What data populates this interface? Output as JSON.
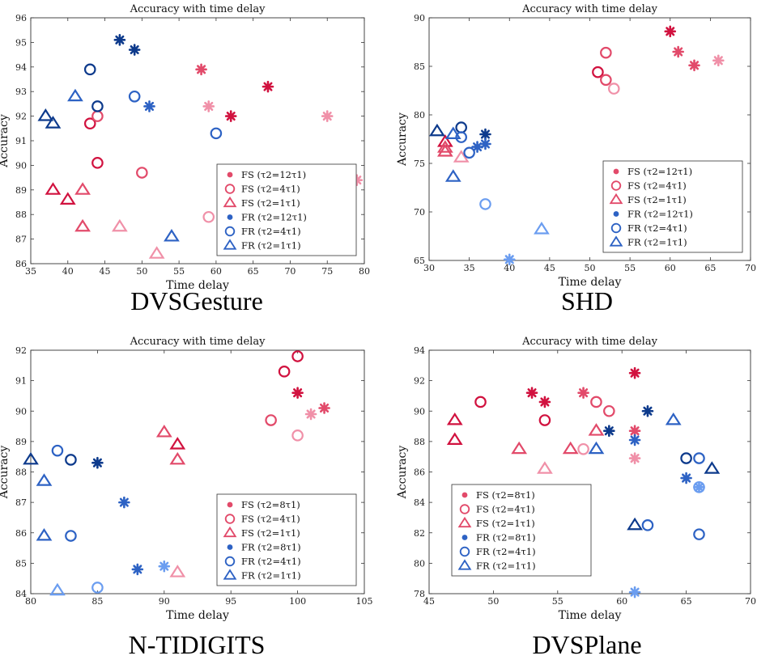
{
  "colors": {
    "fs_dark": "#d1123f",
    "fs_mid": "#e24a6a",
    "fs_light": "#f090a8",
    "fr_dark": "#0d3a8c",
    "fr_mid": "#2d62c4",
    "fr_light": "#6b9df0"
  },
  "chart_data": [
    {
      "type": "scatter",
      "caption": "DVSGesture",
      "title": "Accuracy with time delay",
      "xlabel": "Time delay",
      "ylabel": "Accuracy",
      "xlim": [
        35,
        80
      ],
      "ylim": [
        86,
        96
      ],
      "xticks": [
        "35",
        "40",
        "45",
        "50",
        "55",
        "60",
        "65",
        "70",
        "75",
        "80"
      ],
      "yticks": [
        "86",
        "87",
        "88",
        "89",
        "90",
        "91",
        "92",
        "93",
        "94",
        "95",
        "96"
      ],
      "legend_position": "bottom-right",
      "legend": [
        {
          "label": "FS (τ2=12τ1)",
          "marker": "dot",
          "group": "fs"
        },
        {
          "label": "FS (τ2=4τ1)",
          "marker": "circle",
          "group": "fs"
        },
        {
          "label": "FS (τ2=1τ1)",
          "marker": "triangle",
          "group": "fs"
        },
        {
          "label": "FR (τ2=12τ1)",
          "marker": "dot",
          "group": "fr"
        },
        {
          "label": "FR (τ2=4τ1)",
          "marker": "circle",
          "group": "fr"
        },
        {
          "label": "FR (τ2=1τ1)",
          "marker": "triangle",
          "group": "fr"
        }
      ],
      "points": [
        {
          "x": 58,
          "y": 93.9,
          "marker": "star",
          "color": "fs_mid"
        },
        {
          "x": 59,
          "y": 92.4,
          "marker": "star",
          "color": "fs_light"
        },
        {
          "x": 62,
          "y": 92.0,
          "marker": "star",
          "color": "fs_dark"
        },
        {
          "x": 67,
          "y": 93.2,
          "marker": "star",
          "color": "fs_dark"
        },
        {
          "x": 75,
          "y": 92.0,
          "marker": "star",
          "color": "fs_light"
        },
        {
          "x": 79,
          "y": 89.4,
          "marker": "star",
          "color": "fs_light"
        },
        {
          "x": 43,
          "y": 91.7,
          "marker": "circle",
          "color": "fs_dark"
        },
        {
          "x": 44,
          "y": 92.0,
          "marker": "circle",
          "color": "fs_mid"
        },
        {
          "x": 44,
          "y": 90.1,
          "marker": "circle",
          "color": "fs_dark"
        },
        {
          "x": 50,
          "y": 89.7,
          "marker": "circle",
          "color": "fs_mid"
        },
        {
          "x": 59,
          "y": 87.9,
          "marker": "circle",
          "color": "fs_light"
        },
        {
          "x": 38,
          "y": 89.0,
          "marker": "triangle",
          "color": "fs_dark"
        },
        {
          "x": 40,
          "y": 88.6,
          "marker": "triangle",
          "color": "fs_dark"
        },
        {
          "x": 42,
          "y": 89.0,
          "marker": "triangle",
          "color": "fs_mid"
        },
        {
          "x": 42,
          "y": 87.5,
          "marker": "triangle",
          "color": "fs_mid"
        },
        {
          "x": 47,
          "y": 87.5,
          "marker": "triangle",
          "color": "fs_light"
        },
        {
          "x": 52,
          "y": 86.4,
          "marker": "triangle",
          "color": "fs_light"
        },
        {
          "x": 47,
          "y": 95.1,
          "marker": "star",
          "color": "fr_dark"
        },
        {
          "x": 49,
          "y": 94.7,
          "marker": "star",
          "color": "fr_dark"
        },
        {
          "x": 51,
          "y": 92.4,
          "marker": "star",
          "color": "fr_mid"
        },
        {
          "x": 43,
          "y": 93.9,
          "marker": "circle",
          "color": "fr_dark"
        },
        {
          "x": 44,
          "y": 92.4,
          "marker": "circle",
          "color": "fr_dark"
        },
        {
          "x": 49,
          "y": 92.8,
          "marker": "circle",
          "color": "fr_mid"
        },
        {
          "x": 60,
          "y": 91.3,
          "marker": "circle",
          "color": "fr_mid"
        },
        {
          "x": 37,
          "y": 92.0,
          "marker": "triangle",
          "color": "fr_dark"
        },
        {
          "x": 38,
          "y": 91.7,
          "marker": "triangle",
          "color": "fr_dark"
        },
        {
          "x": 41,
          "y": 92.8,
          "marker": "triangle",
          "color": "fr_mid"
        },
        {
          "x": 54,
          "y": 87.1,
          "marker": "triangle",
          "color": "fr_mid"
        }
      ]
    },
    {
      "type": "scatter",
      "caption": "SHD",
      "title": "Accuracy with time delay",
      "xlabel": "Time delay",
      "ylabel": "Accuracy",
      "xlim": [
        30,
        70
      ],
      "ylim": [
        65,
        90
      ],
      "xticks": [
        "30",
        "35",
        "40",
        "45",
        "50",
        "55",
        "60",
        "65",
        "70"
      ],
      "yticks": [
        "65",
        "70",
        "75",
        "80",
        "85",
        "90"
      ],
      "legend_position": "bottom-right",
      "legend": [
        {
          "label": "FS (τ2=12τ1)",
          "marker": "dot",
          "group": "fs"
        },
        {
          "label": "FS (τ2=4τ1)",
          "marker": "circle",
          "group": "fs"
        },
        {
          "label": "FS (τ2=1τ1)",
          "marker": "triangle",
          "group": "fs"
        },
        {
          "label": "FR (τ2=12τ1)",
          "marker": "dot",
          "group": "fr"
        },
        {
          "label": "FR (τ2=4τ1)",
          "marker": "circle",
          "group": "fr"
        },
        {
          "label": "FR (τ2=1τ1)",
          "marker": "triangle",
          "group": "fr"
        }
      ],
      "points": [
        {
          "x": 60,
          "y": 88.6,
          "marker": "star",
          "color": "fs_dark"
        },
        {
          "x": 61,
          "y": 86.5,
          "marker": "star",
          "color": "fs_mid"
        },
        {
          "x": 63,
          "y": 85.1,
          "marker": "star",
          "color": "fs_mid"
        },
        {
          "x": 66,
          "y": 85.6,
          "marker": "star",
          "color": "fs_light"
        },
        {
          "x": 52,
          "y": 86.4,
          "marker": "circle",
          "color": "fs_mid"
        },
        {
          "x": 51,
          "y": 84.4,
          "marker": "circle",
          "color": "fs_dark"
        },
        {
          "x": 52,
          "y": 83.6,
          "marker": "circle",
          "color": "fs_mid"
        },
        {
          "x": 53,
          "y": 82.7,
          "marker": "circle",
          "color": "fs_light"
        },
        {
          "x": 32,
          "y": 77.2,
          "marker": "triangle",
          "color": "fs_dark"
        },
        {
          "x": 32,
          "y": 76.6,
          "marker": "triangle",
          "color": "fs_mid"
        },
        {
          "x": 32,
          "y": 76.2,
          "marker": "triangle",
          "color": "fs_mid"
        },
        {
          "x": 34,
          "y": 75.6,
          "marker": "triangle",
          "color": "fs_light"
        },
        {
          "x": 37,
          "y": 78.0,
          "marker": "star",
          "color": "fr_dark"
        },
        {
          "x": 37,
          "y": 77.0,
          "marker": "star",
          "color": "fr_mid"
        },
        {
          "x": 36,
          "y": 76.7,
          "marker": "star",
          "color": "fr_mid"
        },
        {
          "x": 40,
          "y": 65.1,
          "marker": "star",
          "color": "fr_light"
        },
        {
          "x": 34,
          "y": 78.7,
          "marker": "circle",
          "color": "fr_dark"
        },
        {
          "x": 34,
          "y": 77.7,
          "marker": "circle",
          "color": "fr_mid"
        },
        {
          "x": 35,
          "y": 76.1,
          "marker": "circle",
          "color": "fr_mid"
        },
        {
          "x": 37,
          "y": 70.8,
          "marker": "circle",
          "color": "fr_light"
        },
        {
          "x": 31,
          "y": 78.3,
          "marker": "triangle",
          "color": "fr_dark"
        },
        {
          "x": 33,
          "y": 78.0,
          "marker": "triangle",
          "color": "fr_mid"
        },
        {
          "x": 33,
          "y": 73.6,
          "marker": "triangle",
          "color": "fr_mid"
        },
        {
          "x": 44,
          "y": 68.2,
          "marker": "triangle",
          "color": "fr_light"
        }
      ]
    },
    {
      "type": "scatter",
      "caption": "N-TIDIGITS",
      "title": "Accuracy with time delay",
      "xlabel": "Time delay",
      "ylabel": "Accuracy",
      "xlim": [
        80,
        105
      ],
      "ylim": [
        84,
        92
      ],
      "xticks": [
        "80",
        "85",
        "90",
        "95",
        "100",
        "105"
      ],
      "yticks": [
        "84",
        "85",
        "86",
        "87",
        "88",
        "89",
        "90",
        "91",
        "92"
      ],
      "legend_position": "bottom-right",
      "legend": [
        {
          "label": "FS (τ2=8τ1)",
          "marker": "dot",
          "group": "fs"
        },
        {
          "label": "FS (τ2=4τ1)",
          "marker": "circle",
          "group": "fs"
        },
        {
          "label": "FS (τ2=1τ1)",
          "marker": "triangle",
          "group": "fs"
        },
        {
          "label": "FR (τ2=8τ1)",
          "marker": "dot",
          "group": "fr"
        },
        {
          "label": "FR (τ2=4τ1)",
          "marker": "circle",
          "group": "fr"
        },
        {
          "label": "FR (τ2=1τ1)",
          "marker": "triangle",
          "group": "fr"
        }
      ],
      "points": [
        {
          "x": 100,
          "y": 90.6,
          "marker": "star",
          "color": "fs_dark"
        },
        {
          "x": 101,
          "y": 89.9,
          "marker": "star",
          "color": "fs_light"
        },
        {
          "x": 102,
          "y": 90.1,
          "marker": "star",
          "color": "fs_mid"
        },
        {
          "x": 90,
          "y": 84.9,
          "marker": "star",
          "color": "fr_light"
        },
        {
          "x": 100,
          "y": 91.8,
          "marker": "circle",
          "color": "fs_dark"
        },
        {
          "x": 99,
          "y": 91.3,
          "marker": "circle",
          "color": "fs_dark"
        },
        {
          "x": 98,
          "y": 89.7,
          "marker": "circle",
          "color": "fs_mid"
        },
        {
          "x": 100,
          "y": 89.2,
          "marker": "circle",
          "color": "fs_light"
        },
        {
          "x": 90,
          "y": 89.3,
          "marker": "triangle",
          "color": "fs_mid"
        },
        {
          "x": 91,
          "y": 88.9,
          "marker": "triangle",
          "color": "fs_dark"
        },
        {
          "x": 91,
          "y": 88.4,
          "marker": "triangle",
          "color": "fs_mid"
        },
        {
          "x": 91,
          "y": 84.7,
          "marker": "triangle",
          "color": "fs_light"
        },
        {
          "x": 85,
          "y": 88.3,
          "marker": "star",
          "color": "fr_dark"
        },
        {
          "x": 87,
          "y": 87.0,
          "marker": "star",
          "color": "fr_mid"
        },
        {
          "x": 88,
          "y": 84.8,
          "marker": "star",
          "color": "fr_mid"
        },
        {
          "x": 82,
          "y": 88.7,
          "marker": "circle",
          "color": "fr_mid"
        },
        {
          "x": 83,
          "y": 88.4,
          "marker": "circle",
          "color": "fr_dark"
        },
        {
          "x": 83,
          "y": 85.9,
          "marker": "circle",
          "color": "fr_mid"
        },
        {
          "x": 85,
          "y": 84.2,
          "marker": "circle",
          "color": "fr_light"
        },
        {
          "x": 80,
          "y": 88.4,
          "marker": "triangle",
          "color": "fr_dark"
        },
        {
          "x": 81,
          "y": 87.7,
          "marker": "triangle",
          "color": "fr_mid"
        },
        {
          "x": 81,
          "y": 85.9,
          "marker": "triangle",
          "color": "fr_mid"
        },
        {
          "x": 82,
          "y": 84.1,
          "marker": "triangle",
          "color": "fr_light"
        }
      ]
    },
    {
      "type": "scatter",
      "caption": "DVSPlane",
      "title": "Accuracy with time delay",
      "xlabel": "Time delay",
      "ylabel": "Accuracy",
      "xlim": [
        45,
        70
      ],
      "ylim": [
        78,
        94
      ],
      "xticks": [
        "45",
        "50",
        "55",
        "60",
        "65",
        "70"
      ],
      "yticks": [
        "78",
        "80",
        "82",
        "84",
        "86",
        "88",
        "90",
        "92",
        "94"
      ],
      "legend_position": "bottom-left",
      "legend": [
        {
          "label": "FS (τ2=8τ1)",
          "marker": "dot",
          "group": "fs"
        },
        {
          "label": "FS (τ2=4τ1)",
          "marker": "circle",
          "group": "fs"
        },
        {
          "label": "FS (τ2=1τ1)",
          "marker": "triangle",
          "group": "fs"
        },
        {
          "label": "FR (τ2=8τ1)",
          "marker": "dot",
          "group": "fr"
        },
        {
          "label": "FR (τ2=4τ1)",
          "marker": "circle",
          "group": "fr"
        },
        {
          "label": "FR (τ2=1τ1)",
          "marker": "triangle",
          "group": "fr"
        }
      ],
      "points": [
        {
          "x": 61,
          "y": 92.5,
          "marker": "star",
          "color": "fs_dark"
        },
        {
          "x": 53,
          "y": 91.2,
          "marker": "star",
          "color": "fs_dark"
        },
        {
          "x": 54,
          "y": 90.6,
          "marker": "star",
          "color": "fs_dark"
        },
        {
          "x": 57,
          "y": 91.2,
          "marker": "star",
          "color": "fs_mid"
        },
        {
          "x": 61,
          "y": 88.7,
          "marker": "star",
          "color": "fs_mid"
        },
        {
          "x": 61,
          "y": 86.9,
          "marker": "star",
          "color": "fs_light"
        },
        {
          "x": 49,
          "y": 90.6,
          "marker": "circle",
          "color": "fs_dark"
        },
        {
          "x": 54,
          "y": 89.4,
          "marker": "circle",
          "color": "fs_dark"
        },
        {
          "x": 58,
          "y": 90.6,
          "marker": "circle",
          "color": "fs_mid"
        },
        {
          "x": 59,
          "y": 90.0,
          "marker": "circle",
          "color": "fs_mid"
        },
        {
          "x": 57,
          "y": 87.5,
          "marker": "circle",
          "color": "fs_light"
        },
        {
          "x": 47,
          "y": 89.4,
          "marker": "triangle",
          "color": "fs_dark"
        },
        {
          "x": 47,
          "y": 88.1,
          "marker": "triangle",
          "color": "fs_dark"
        },
        {
          "x": 52,
          "y": 87.5,
          "marker": "triangle",
          "color": "fs_mid"
        },
        {
          "x": 54,
          "y": 86.2,
          "marker": "triangle",
          "color": "fs_light"
        },
        {
          "x": 56,
          "y": 87.5,
          "marker": "triangle",
          "color": "fs_mid"
        },
        {
          "x": 58,
          "y": 88.7,
          "marker": "triangle",
          "color": "fs_mid"
        },
        {
          "x": 59,
          "y": 88.7,
          "marker": "star",
          "color": "fr_dark"
        },
        {
          "x": 62,
          "y": 90.0,
          "marker": "star",
          "color": "fr_dark"
        },
        {
          "x": 61,
          "y": 88.1,
          "marker": "star",
          "color": "fr_mid"
        },
        {
          "x": 65,
          "y": 85.6,
          "marker": "star",
          "color": "fr_mid"
        },
        {
          "x": 66,
          "y": 85.0,
          "marker": "star",
          "color": "fr_light"
        },
        {
          "x": 61,
          "y": 78.1,
          "marker": "star",
          "color": "fr_light"
        },
        {
          "x": 65,
          "y": 86.9,
          "marker": "circle",
          "color": "fr_dark"
        },
        {
          "x": 66,
          "y": 86.9,
          "marker": "circle",
          "color": "fr_mid"
        },
        {
          "x": 66,
          "y": 85.0,
          "marker": "circle",
          "color": "fr_light"
        },
        {
          "x": 62,
          "y": 82.5,
          "marker": "circle",
          "color": "fr_mid"
        },
        {
          "x": 66,
          "y": 81.9,
          "marker": "circle",
          "color": "fr_mid"
        },
        {
          "x": 58,
          "y": 87.5,
          "marker": "triangle",
          "color": "fr_mid"
        },
        {
          "x": 64,
          "y": 89.4,
          "marker": "triangle",
          "color": "fr_mid"
        },
        {
          "x": 67,
          "y": 86.2,
          "marker": "triangle",
          "color": "fr_dark"
        },
        {
          "x": 61,
          "y": 82.5,
          "marker": "triangle",
          "color": "fr_dark"
        }
      ]
    }
  ]
}
